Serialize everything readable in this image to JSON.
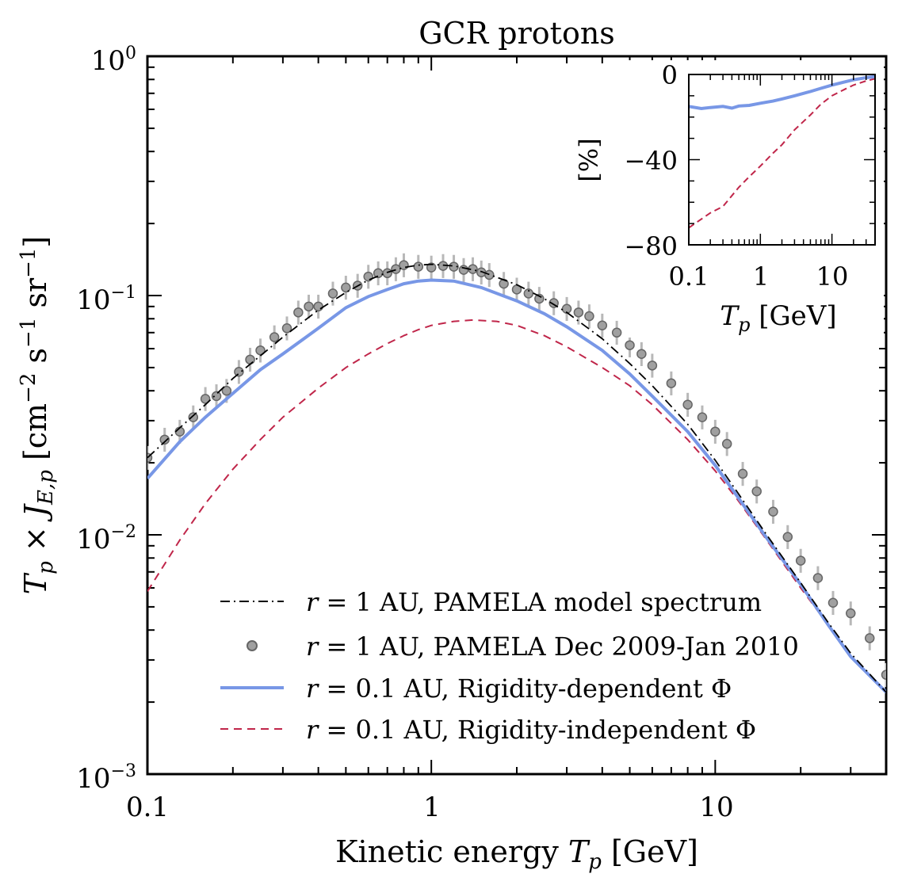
{
  "chart_data": [
    {
      "type": "line",
      "title": "GCR protons",
      "xlabel": "Kinetic energy T_p [GeV]",
      "ylabel": "T_p × J_E,p [cm^-2 s^-1 sr^-1]",
      "xscale": "log",
      "yscale": "log",
      "xlim": [
        0.1,
        40
      ],
      "ylim": [
        0.001,
        1
      ],
      "x_ticks": [
        "0.1",
        "1",
        "10"
      ],
      "y_ticks": [
        "10^-3",
        "10^-2",
        "10^-1",
        "10^0"
      ],
      "legend_position": "bottom-center",
      "series": [
        {
          "name": "r = 1 AU, PAMELA model spectrum",
          "style": "dash-dot",
          "color": "#000000",
          "x": [
            0.1,
            0.13,
            0.16,
            0.2,
            0.25,
            0.3,
            0.4,
            0.5,
            0.6,
            0.7,
            0.8,
            0.9,
            1.0,
            1.2,
            1.5,
            2,
            2.5,
            3,
            4,
            5,
            6,
            8,
            10,
            12,
            15,
            20,
            25,
            30,
            40
          ],
          "values": [
            0.021,
            0.028,
            0.035,
            0.045,
            0.056,
            0.067,
            0.087,
            0.103,
            0.116,
            0.125,
            0.131,
            0.134,
            0.135,
            0.133,
            0.126,
            0.111,
            0.097,
            0.085,
            0.066,
            0.052,
            0.042,
            0.029,
            0.0205,
            0.015,
            0.0102,
            0.0063,
            0.0043,
            0.0032,
            0.0022
          ]
        },
        {
          "name": "r = 1 AU, PAMELA Dec 2009-Jan 2010",
          "style": "markers",
          "color": "#a0a0a0",
          "x": [
            0.1,
            0.115,
            0.13,
            0.145,
            0.16,
            0.175,
            0.19,
            0.21,
            0.23,
            0.25,
            0.28,
            0.31,
            0.34,
            0.37,
            0.4,
            0.45,
            0.5,
            0.55,
            0.6,
            0.65,
            0.7,
            0.75,
            0.8,
            0.9,
            1.0,
            1.1,
            1.2,
            1.3,
            1.4,
            1.5,
            1.6,
            1.8,
            2.0,
            2.2,
            2.4,
            2.7,
            3.0,
            3.3,
            3.6,
            4.0,
            4.5,
            5.0,
            5.5,
            6.0,
            7.0,
            8.0,
            9.0,
            10,
            11,
            12.5,
            14,
            16,
            18,
            20,
            23,
            26,
            30,
            35,
            40
          ],
          "values": [
            0.021,
            0.025,
            0.027,
            0.031,
            0.037,
            0.038,
            0.04,
            0.048,
            0.054,
            0.059,
            0.067,
            0.073,
            0.085,
            0.09,
            0.09,
            0.102,
            0.108,
            0.11,
            0.12,
            0.124,
            0.124,
            0.129,
            0.134,
            0.132,
            0.131,
            0.133,
            0.132,
            0.128,
            0.129,
            0.125,
            0.122,
            0.112,
            0.106,
            0.102,
            0.097,
            0.093,
            0.088,
            0.085,
            0.082,
            0.075,
            0.07,
            0.062,
            0.057,
            0.051,
            0.043,
            0.035,
            0.031,
            0.027,
            0.024,
            0.018,
            0.0152,
            0.0125,
            0.0098,
            0.0078,
            0.0066,
            0.0052,
            0.0047,
            0.0037,
            0.0026
          ]
        },
        {
          "name": "r = 0.1 AU, Rigidity-dependent Φ",
          "style": "solid",
          "color": "#7897e6",
          "x": [
            0.1,
            0.13,
            0.16,
            0.2,
            0.25,
            0.3,
            0.4,
            0.5,
            0.6,
            0.7,
            0.8,
            0.9,
            1.0,
            1.2,
            1.5,
            2,
            2.5,
            3,
            4,
            5,
            6,
            8,
            10,
            12,
            15,
            20,
            25,
            30,
            40
          ],
          "values": [
            0.0172,
            0.0245,
            0.031,
            0.039,
            0.049,
            0.057,
            0.073,
            0.089,
            0.099,
            0.106,
            0.112,
            0.115,
            0.116,
            0.115,
            0.108,
            0.095,
            0.084,
            0.074,
            0.059,
            0.047,
            0.038,
            0.027,
            0.0195,
            0.0144,
            0.0099,
            0.0062,
            0.0042,
            0.0031,
            0.0022
          ]
        },
        {
          "name": "r = 0.1 AU, Rigidity-independent Φ",
          "style": "dashed",
          "color": "#c0264a",
          "x": [
            0.1,
            0.13,
            0.16,
            0.2,
            0.25,
            0.3,
            0.4,
            0.5,
            0.6,
            0.7,
            0.8,
            0.9,
            1.0,
            1.2,
            1.4,
            1.7,
            2,
            2.5,
            3,
            4,
            5,
            6,
            8,
            10,
            12,
            15,
            20,
            25,
            30,
            40
          ],
          "values": [
            0.0058,
            0.0095,
            0.0135,
            0.0188,
            0.025,
            0.031,
            0.041,
            0.05,
            0.057,
            0.063,
            0.068,
            0.072,
            0.075,
            0.078,
            0.079,
            0.078,
            0.075,
            0.068,
            0.061,
            0.05,
            0.042,
            0.035,
            0.025,
            0.0185,
            0.014,
            0.0097,
            0.006,
            0.0042,
            0.0031,
            0.0022
          ]
        }
      ]
    },
    {
      "type": "line",
      "title": "",
      "xlabel": "T_p [GeV]",
      "ylabel": "[%]",
      "xscale": "log",
      "xlim": [
        0.1,
        40
      ],
      "ylim": [
        -80,
        0
      ],
      "x_ticks": [
        "0.1",
        "1",
        "10"
      ],
      "y_ticks": [
        "0",
        "−40",
        "−80"
      ],
      "series": [
        {
          "style": "solid",
          "color": "#7897e6",
          "x": [
            0.1,
            0.15,
            0.2,
            0.3,
            0.4,
            0.5,
            0.7,
            1,
            1.5,
            2,
            3,
            5,
            7,
            10,
            15,
            20,
            30,
            40
          ],
          "values": [
            -15,
            -16,
            -15.5,
            -15,
            -15.8,
            -14.8,
            -14.5,
            -13.5,
            -12.5,
            -11.5,
            -10,
            -8,
            -6.5,
            -5,
            -3.5,
            -2.5,
            -1.5,
            -1
          ]
        },
        {
          "style": "dashed",
          "color": "#c0264a",
          "x": [
            0.1,
            0.2,
            0.3,
            0.5,
            0.7,
            1,
            1.5,
            2,
            3,
            5,
            7,
            10,
            15,
            20,
            30,
            40
          ],
          "values": [
            -72,
            -65,
            -62,
            -53,
            -48,
            -43,
            -37,
            -33,
            -26,
            -19,
            -14,
            -10,
            -7,
            -5,
            -3,
            -2
          ]
        }
      ]
    }
  ]
}
